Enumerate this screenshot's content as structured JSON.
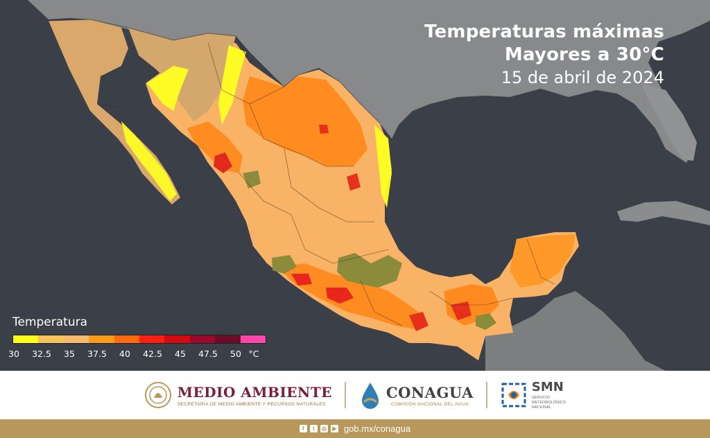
{
  "title": {
    "line1": "Temperaturas máximas",
    "line2": "Mayores a 30°C",
    "date": "15 de abril de 2024"
  },
  "legend": {
    "title": "Temperatura",
    "ticks": [
      "30",
      "32.5",
      "35",
      "37.5",
      "40",
      "42.5",
      "45",
      "47.5",
      "50",
      "°C"
    ],
    "colors": [
      "#ffff1a",
      "#f7c35c",
      "#f7bb70",
      "#ff9a1a",
      "#ff6a12",
      "#ff1e14",
      "#d10d12",
      "#9b0a2c",
      "#6d0d29",
      "#ff47aa"
    ]
  },
  "palette": {
    "ocean": "#3b4048",
    "land_gray": "#8d8f90",
    "base_orange": "#f8a95a",
    "orange_hot": "#ff8a1f",
    "red": "#e8261d",
    "yellow": "#ffff20",
    "cool_olive": "#8f8a3c"
  },
  "logos": {
    "medio_ambiente": {
      "title": "MEDIO AMBIENTE",
      "subtitle": "SECRETARÍA DE MEDIO AMBIENTE Y RECURSOS NATURALES"
    },
    "conagua": {
      "title": "CONAGUA",
      "subtitle": "COMISIÓN NACIONAL DEL AGUA"
    },
    "smn": {
      "title": "SMN",
      "subtitle_lines": [
        "SERVICIO",
        "METEOROLÓGICO",
        "NACIONAL"
      ]
    }
  },
  "footer": {
    "social_icons": [
      "facebook-icon",
      "twitter-icon",
      "instagram-icon",
      "youtube-icon"
    ],
    "url": "gob.mx/conagua"
  }
}
